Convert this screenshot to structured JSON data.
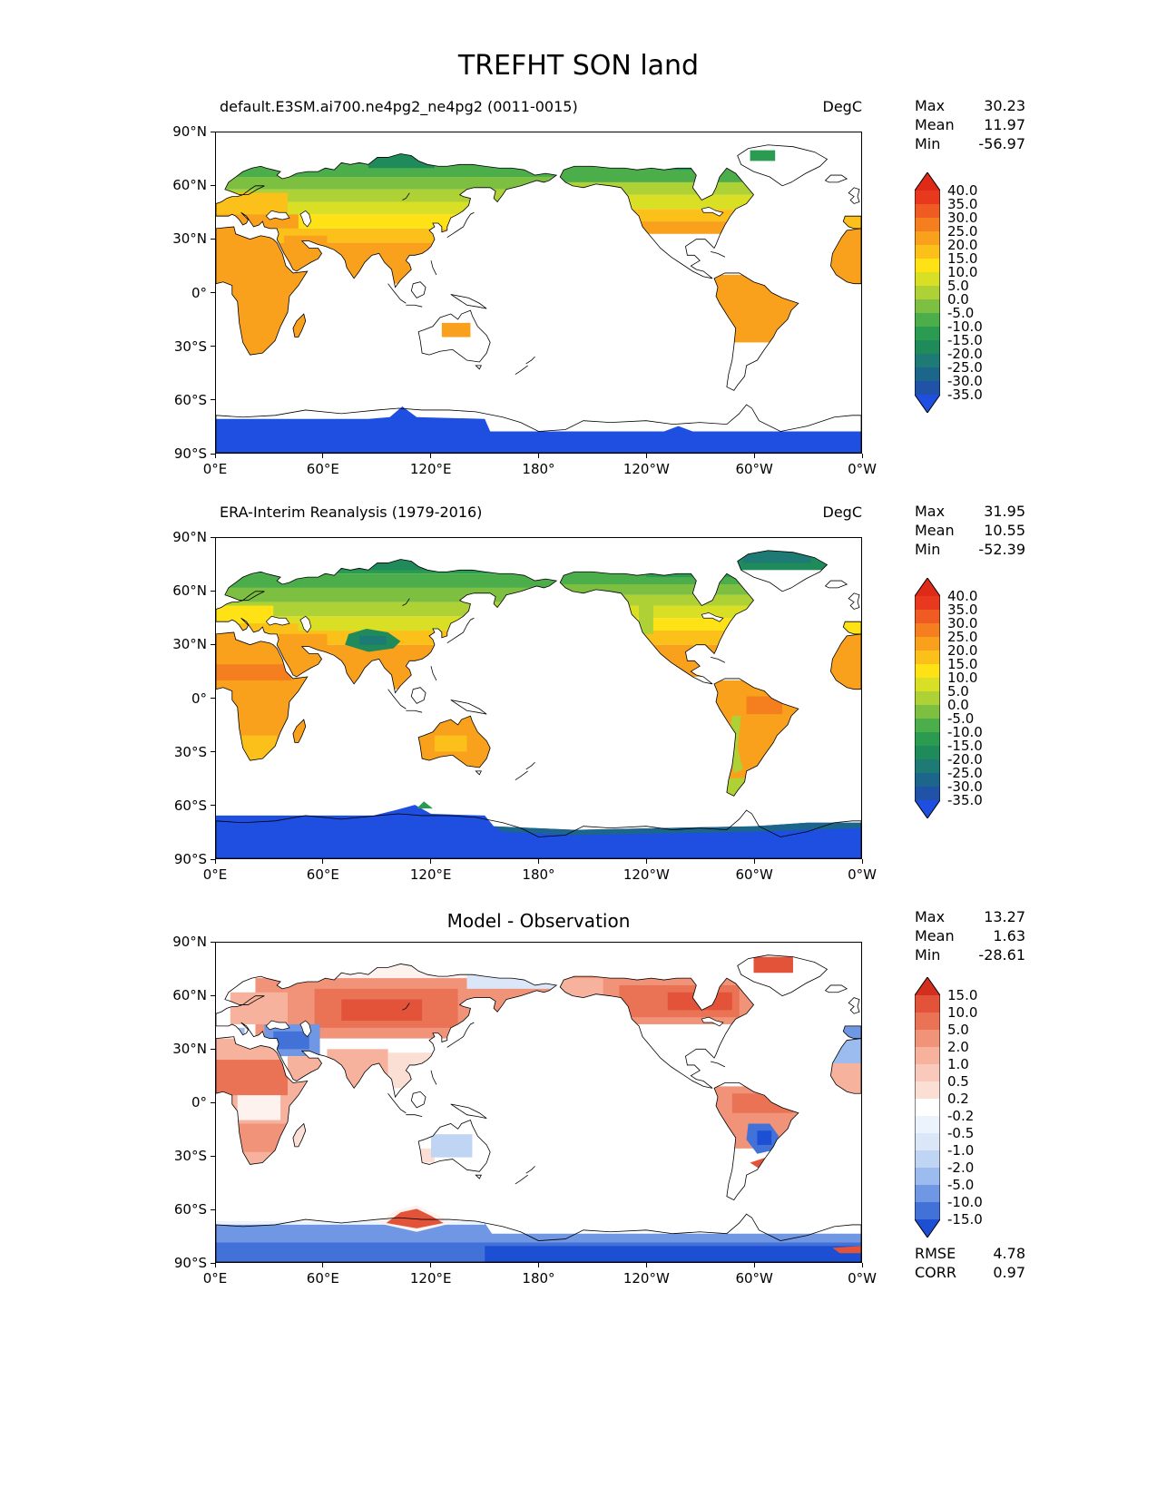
{
  "title": "TREFHT SON land",
  "colors": {
    "ocean": "#ffffff",
    "coastline": "#000000",
    "text": "#000000"
  },
  "chart_data": {
    "type": "heatmap",
    "variable": "TREFHT",
    "season": "SON",
    "region": "land",
    "projection": "global cylindrical, longitude 0E to 0W (0-360), latitude 90N to 90S",
    "lat_ticks": [
      "90°N",
      "60°N",
      "30°N",
      "0°",
      "30°S",
      "60°S",
      "90°S"
    ],
    "lon_ticks": [
      "0°E",
      "60°E",
      "120°E",
      "180°",
      "120°W",
      "60°W",
      "0°W"
    ],
    "panels": [
      {
        "title": "default.E3SM.ai700.ne4pg2_ne4pg2 (0011-0015)",
        "units": "DegC",
        "stats": [
          {
            "label": "Max",
            "value": "30.23"
          },
          {
            "label": "Mean",
            "value": "11.97"
          },
          {
            "label": "Min",
            "value": "-56.97"
          }
        ],
        "colorbar": {
          "levels": [
            40,
            35,
            30,
            25,
            20,
            15,
            10,
            5,
            0,
            -5,
            -10,
            -15,
            -20,
            -25,
            -30,
            -35
          ],
          "tick_labels": [
            "40.0",
            "35.0",
            "30.0",
            "25.0",
            "20.0",
            "15.0",
            "10.0",
            "5.0",
            "0.0",
            "-5.0",
            "-10.0",
            "-15.0",
            "-20.0",
            "-25.0",
            "-30.0",
            "-35.0"
          ],
          "band_colors": [
            "#e8391f",
            "#f05b23",
            "#f57f1f",
            "#f9a11d",
            "#fcc01a",
            "#fee215",
            "#d9df24",
            "#aed136",
            "#7cbf41",
            "#4cae4a",
            "#2b9b51",
            "#1f8a5a",
            "#1d7a74",
            "#1d668b",
            "#2052a8"
          ],
          "cap_top": "#df2a18",
          "cap_bottom": "#1e4fe0"
        }
      },
      {
        "title": "ERA-Interim Reanalysis (1979-2016)",
        "units": "DegC",
        "stats": [
          {
            "label": "Max",
            "value": "31.95"
          },
          {
            "label": "Mean",
            "value": "10.55"
          },
          {
            "label": "Min",
            "value": "-52.39"
          }
        ],
        "colorbar": {
          "levels": [
            40,
            35,
            30,
            25,
            20,
            15,
            10,
            5,
            0,
            -5,
            -10,
            -15,
            -20,
            -25,
            -30,
            -35
          ],
          "tick_labels": [
            "40.0",
            "35.0",
            "30.0",
            "25.0",
            "20.0",
            "15.0",
            "10.0",
            "5.0",
            "0.0",
            "-5.0",
            "-10.0",
            "-15.0",
            "-20.0",
            "-25.0",
            "-30.0",
            "-35.0"
          ],
          "band_colors": [
            "#e8391f",
            "#f05b23",
            "#f57f1f",
            "#f9a11d",
            "#fcc01a",
            "#fee215",
            "#d9df24",
            "#aed136",
            "#7cbf41",
            "#4cae4a",
            "#2b9b51",
            "#1f8a5a",
            "#1d7a74",
            "#1d668b",
            "#2052a8"
          ],
          "cap_top": "#df2a18",
          "cap_bottom": "#1e4fe0"
        }
      },
      {
        "title": "Model - Observation",
        "units": "",
        "stats": [
          {
            "label": "Max",
            "value": "13.27"
          },
          {
            "label": "Mean",
            "value": "1.63"
          },
          {
            "label": "Min",
            "value": "-28.61"
          }
        ],
        "colorbar": {
          "levels": [
            15,
            10,
            5,
            2,
            1,
            0.5,
            0.2,
            -0.2,
            -0.5,
            -1,
            -2,
            -5,
            -10,
            -15
          ],
          "tick_labels": [
            "15.0",
            "10.0",
            "5.0",
            "2.0",
            "1.0",
            "0.5",
            "0.2",
            "-0.2",
            "-0.5",
            "-1.0",
            "-2.0",
            "-5.0",
            "-10.0",
            "-15.0"
          ],
          "band_colors": [
            "#e25339",
            "#ea7356",
            "#f19379",
            "#f6b29d",
            "#f9cabb",
            "#fcdfd4",
            "#ffffff",
            "#edf3fc",
            "#dbe7f9",
            "#c0d4f4",
            "#9cbbee",
            "#6f97e4",
            "#4272d8"
          ],
          "cap_top": "#d32f1e",
          "cap_bottom": "#1c4fd3"
        },
        "extra_stats": [
          {
            "label": "RMSE",
            "value": "4.78"
          },
          {
            "label": "CORR",
            "value": "0.97"
          }
        ]
      }
    ]
  }
}
